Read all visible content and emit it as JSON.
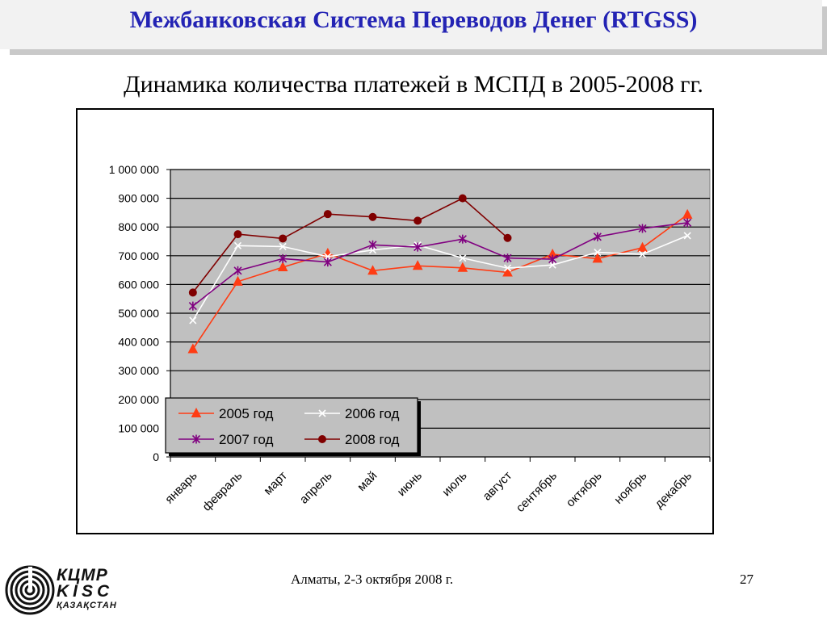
{
  "header": {
    "title": "Межбанковская Система Переводов Денег (RTGSS)"
  },
  "subtitle": "Динамика количества платежей в МСПД в 2005-2008 гг.",
  "chart_data": {
    "type": "line",
    "title": "",
    "xlabel": "",
    "ylabel": "",
    "categories": [
      "январь",
      "февраль",
      "март",
      "апрель",
      "май",
      "июнь",
      "июль",
      "август",
      "сентябрь",
      "октябрь",
      "ноябрь",
      "декабрь"
    ],
    "ylim": [
      0,
      1000000
    ],
    "y_ticks": [
      0,
      100000,
      200000,
      300000,
      400000,
      500000,
      600000,
      700000,
      800000,
      900000,
      1000000
    ],
    "y_tick_labels": [
      "0",
      "100 000",
      "200 000",
      "300 000",
      "400 000",
      "500 000",
      "600 000",
      "700 000",
      "800 000",
      "900 000",
      "1 000 000"
    ],
    "grid": true,
    "legend_position": "bottom-left",
    "series": [
      {
        "name": "2005 год",
        "color": "#ff3c14",
        "marker": "triangle",
        "values": [
          375000,
          610000,
          660000,
          708000,
          648000,
          665000,
          658000,
          642000,
          705000,
          690000,
          728000,
          843000
        ]
      },
      {
        "name": "2006 год",
        "color": "#ffffff",
        "marker": "x",
        "values": [
          475000,
          735000,
          732000,
          697000,
          720000,
          737000,
          692000,
          657000,
          668000,
          712000,
          705000,
          770000
        ]
      },
      {
        "name": "2007 год",
        "color": "#800080",
        "marker": "asterisk",
        "values": [
          525000,
          648000,
          690000,
          678000,
          738000,
          730000,
          758000,
          692000,
          688000,
          766000,
          795000,
          815000
        ]
      },
      {
        "name": "2008 год",
        "color": "#800000",
        "marker": "circle",
        "values": [
          572000,
          775000,
          760000,
          845000,
          835000,
          822000,
          900000,
          762000,
          null,
          null,
          null,
          null
        ]
      }
    ]
  },
  "footer": {
    "text": "Алматы, 2-3 октября 2008 г.",
    "page_number": "27"
  },
  "logo": {
    "line1": "КЦМР",
    "line2": "KISC",
    "line3": "ҚАЗАҚСТАН",
    "icon": "spiral-emblem-icon"
  }
}
